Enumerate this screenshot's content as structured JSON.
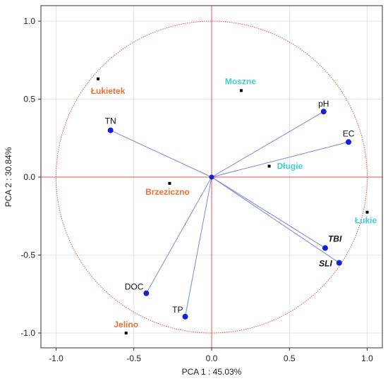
{
  "chart_data": {
    "type": "scatter",
    "subtype": "pca-biplot",
    "xlabel": "PCA 1 : 45.03%",
    "ylabel": "PCA 2 : 30.84%",
    "xlim": [
      -1.0,
      1.0
    ],
    "ylim": [
      -1.0,
      1.0
    ],
    "xticks": [
      "-1.0",
      "-0.5",
      "0.0",
      "0.5",
      "1.0"
    ],
    "yticks": [
      "1.0",
      "0.5",
      "0.0",
      "-0.5",
      "-1.0"
    ],
    "grid": true,
    "unit_circle": true,
    "colors": {
      "circle": "#e05050",
      "axis_cross": "#e05050",
      "vector_line": "#7a86e0",
      "vector_point": "#1420d8",
      "site_point": "#000000",
      "group_orange": "#f07030",
      "group_cyan": "#40d0d0"
    },
    "variables": [
      {
        "label": "pH",
        "x": 0.72,
        "y": 0.42,
        "emphasis": false
      },
      {
        "label": "EC",
        "x": 0.88,
        "y": 0.225,
        "emphasis": false
      },
      {
        "label": "TN",
        "x": -0.65,
        "y": 0.3,
        "emphasis": false
      },
      {
        "label": "TBI",
        "x": 0.73,
        "y": -0.455,
        "emphasis": true
      },
      {
        "label": "SLI",
        "x": 0.82,
        "y": -0.55,
        "emphasis": true
      },
      {
        "label": "DOC",
        "x": -0.42,
        "y": -0.745,
        "emphasis": false
      },
      {
        "label": "TP",
        "x": -0.17,
        "y": -0.895,
        "emphasis": false
      }
    ],
    "sites": [
      {
        "label": "Łukietek",
        "x": -0.73,
        "y": 0.63,
        "group": "orange"
      },
      {
        "label": "Moszne",
        "x": 0.19,
        "y": 0.555,
        "group": "cyan"
      },
      {
        "label": "Długie",
        "x": 0.37,
        "y": 0.07,
        "group": "cyan"
      },
      {
        "label": "Brzeziczno",
        "x": -0.27,
        "y": -0.04,
        "group": "orange"
      },
      {
        "label": "Łukie",
        "x": 1.0,
        "y": -0.225,
        "group": "cyan"
      },
      {
        "label": "Jelino",
        "x": -0.55,
        "y": -1.0,
        "group": "orange"
      }
    ]
  }
}
